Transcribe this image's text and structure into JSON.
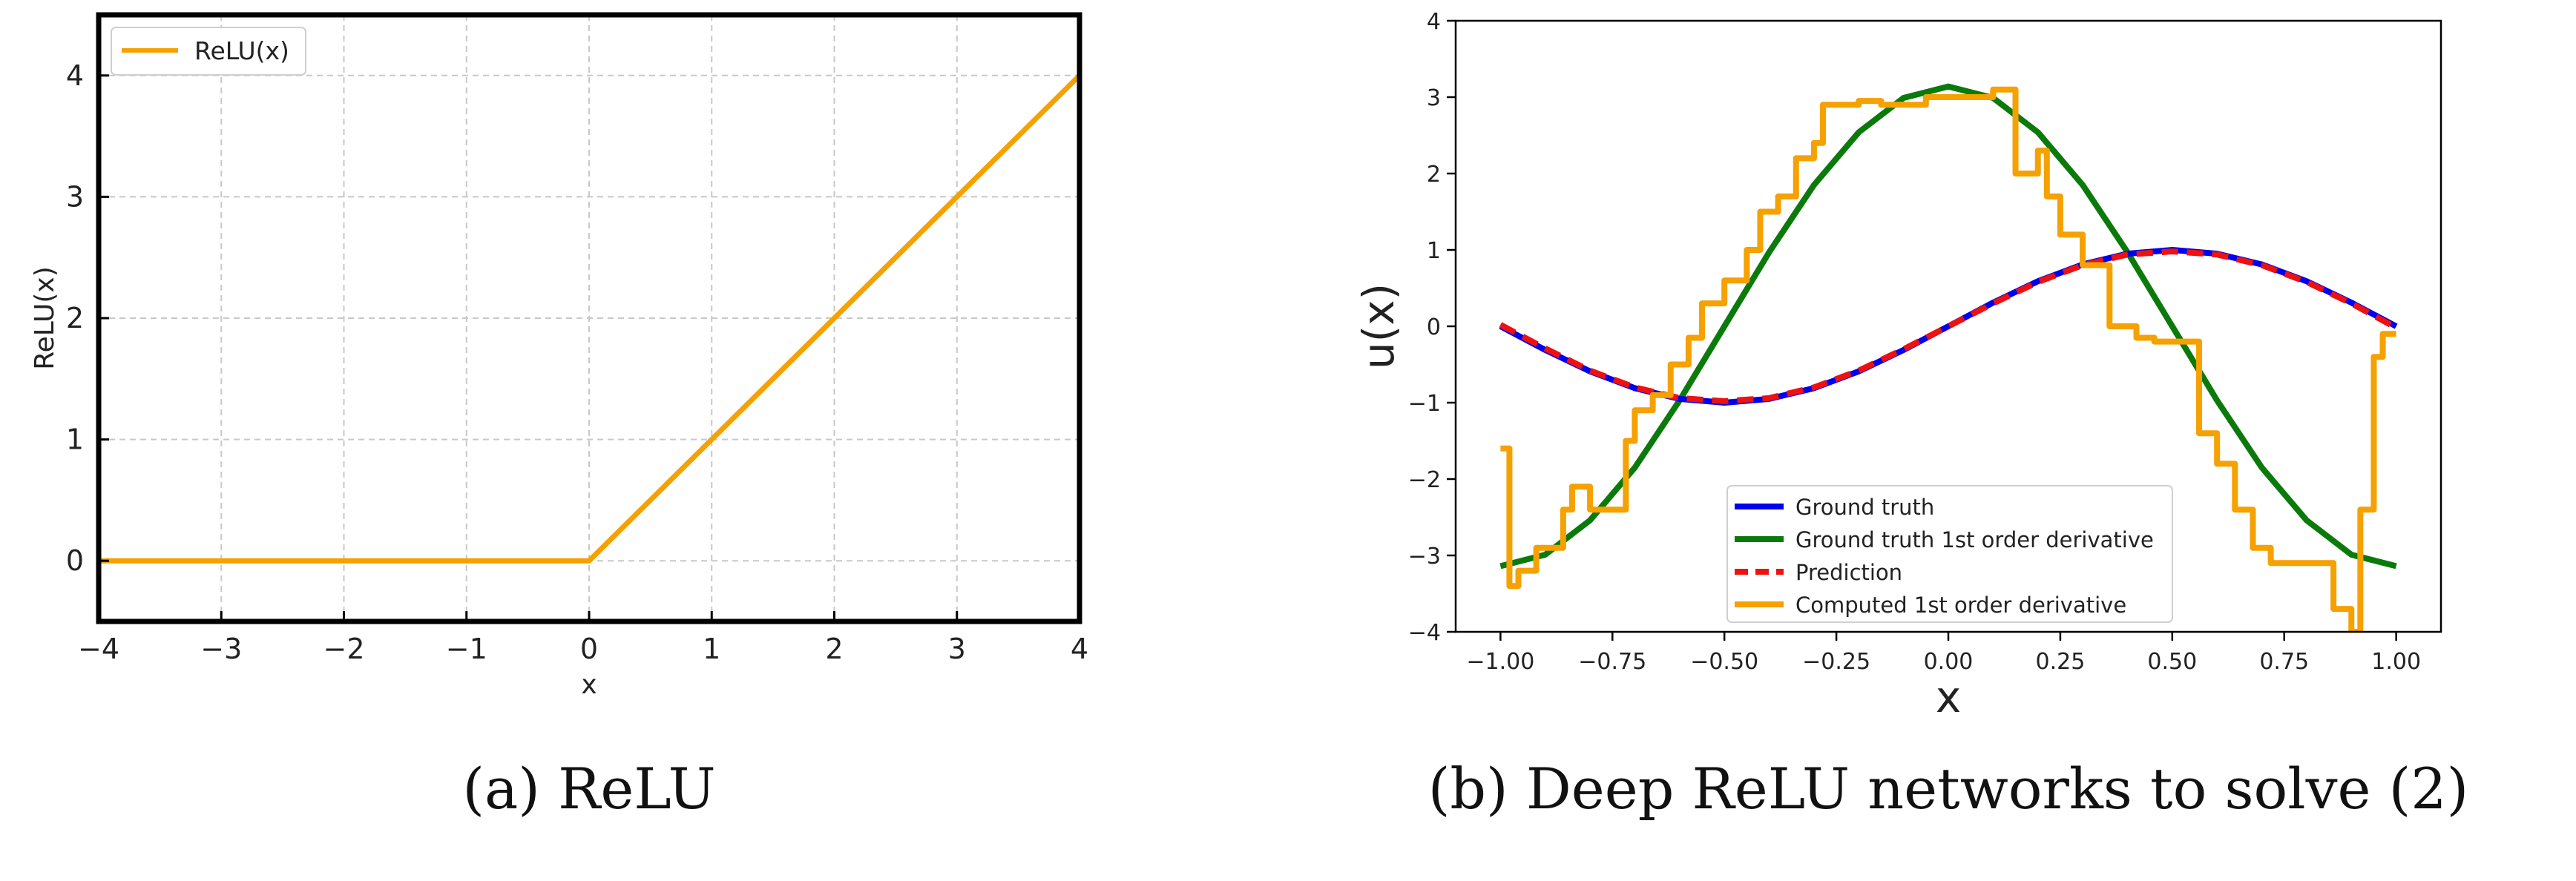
{
  "chart_data": [
    {
      "type": "line",
      "caption": "(a) ReLU",
      "xlabel": "x",
      "ylabel": "ReLU(x)",
      "xlim": [
        -4,
        4
      ],
      "ylim": [
        -0.5,
        4.5
      ],
      "xticks": [
        -4,
        -3,
        -2,
        -1,
        0,
        1,
        2,
        3,
        4
      ],
      "xtick_labels": [
        "−4",
        "−3",
        "−2",
        "−1",
        "0",
        "1",
        "2",
        "3",
        "4"
      ],
      "yticks": [
        0,
        1,
        2,
        3,
        4
      ],
      "ytick_labels": [
        "0",
        "1",
        "2",
        "3",
        "4"
      ],
      "grid": true,
      "legend": "top-left",
      "series": [
        {
          "name": "ReLU(x)",
          "color": "#f5a100",
          "x": [
            -4,
            0,
            4
          ],
          "y": [
            0,
            0,
            4
          ]
        }
      ]
    },
    {
      "type": "line",
      "caption": "(b) Deep ReLU networks to solve (2)",
      "xlabel": "x",
      "ylabel": "u(x)",
      "xlim": [
        -1.1,
        1.1
      ],
      "ylim": [
        -4,
        4
      ],
      "xticks": [
        -1.0,
        -0.75,
        -0.5,
        -0.25,
        0.0,
        0.25,
        0.5,
        0.75,
        1.0
      ],
      "xtick_labels": [
        "−1.00",
        "−0.75",
        "−0.50",
        "−0.25",
        "0.00",
        "0.25",
        "0.50",
        "0.75",
        "1.00"
      ],
      "yticks": [
        4,
        3,
        2,
        1,
        0,
        -1,
        -2,
        -3,
        -4
      ],
      "ytick_labels": [
        "4",
        "3",
        "2",
        "1",
        "0",
        "−1",
        "−2",
        "−3",
        "−4"
      ],
      "grid": false,
      "legend": "lower-center",
      "series": [
        {
          "name": "Ground truth",
          "color": "#0000ee",
          "style": "solid",
          "x": [
            -1.0,
            -0.9,
            -0.8,
            -0.7,
            -0.6,
            -0.5,
            -0.4,
            -0.3,
            -0.2,
            -0.1,
            0.0,
            0.1,
            0.2,
            0.3,
            0.4,
            0.5,
            0.6,
            0.7,
            0.8,
            0.9,
            1.0
          ],
          "y": [
            0.0,
            -0.31,
            -0.59,
            -0.81,
            -0.95,
            -1.0,
            -0.95,
            -0.81,
            -0.59,
            -0.31,
            0.0,
            0.31,
            0.59,
            0.81,
            0.95,
            1.0,
            0.95,
            0.81,
            0.59,
            0.31,
            0.0
          ]
        },
        {
          "name": "Ground truth 1st order derivative",
          "color": "#0a7a0a",
          "style": "solid",
          "x": [
            -1.0,
            -0.9,
            -0.8,
            -0.7,
            -0.6,
            -0.5,
            -0.4,
            -0.3,
            -0.2,
            -0.1,
            0.0,
            0.1,
            0.2,
            0.3,
            0.4,
            0.5,
            0.6,
            0.7,
            0.8,
            0.9,
            1.0
          ],
          "y": [
            -3.14,
            -2.99,
            -2.54,
            -1.85,
            -0.97,
            0.0,
            0.97,
            1.85,
            2.54,
            2.99,
            3.14,
            2.99,
            2.54,
            1.85,
            0.97,
            0.0,
            -0.97,
            -1.85,
            -2.54,
            -2.99,
            -3.14
          ]
        },
        {
          "name": "Prediction",
          "color": "#ee1111",
          "style": "dashed",
          "x": [
            -1.0,
            -0.9,
            -0.8,
            -0.7,
            -0.6,
            -0.5,
            -0.4,
            -0.3,
            -0.2,
            -0.1,
            0.0,
            0.1,
            0.2,
            0.3,
            0.4,
            0.5,
            0.6,
            0.7,
            0.8,
            0.9,
            1.0
          ],
          "y": [
            0.02,
            -0.29,
            -0.58,
            -0.8,
            -0.94,
            -0.98,
            -0.94,
            -0.8,
            -0.58,
            -0.3,
            0.0,
            0.3,
            0.58,
            0.8,
            0.94,
            0.98,
            0.94,
            0.8,
            0.58,
            0.3,
            -0.02
          ]
        },
        {
          "name": "Computed 1st order derivative",
          "color": "#f5a100",
          "style": "step",
          "x": [
            -1.0,
            -0.98,
            -0.98,
            -0.96,
            -0.96,
            -0.92,
            -0.92,
            -0.86,
            -0.86,
            -0.84,
            -0.84,
            -0.8,
            -0.8,
            -0.72,
            -0.72,
            -0.7,
            -0.7,
            -0.66,
            -0.66,
            -0.62,
            -0.62,
            -0.58,
            -0.58,
            -0.55,
            -0.55,
            -0.5,
            -0.5,
            -0.45,
            -0.45,
            -0.42,
            -0.42,
            -0.38,
            -0.38,
            -0.34,
            -0.34,
            -0.3,
            -0.3,
            -0.28,
            -0.28,
            -0.2,
            -0.2,
            -0.15,
            -0.15,
            -0.05,
            -0.05,
            0.1,
            0.1,
            0.15,
            0.15,
            0.2,
            0.2,
            0.22,
            0.22,
            0.25,
            0.25,
            0.3,
            0.3,
            0.36,
            0.36,
            0.42,
            0.42,
            0.46,
            0.46,
            0.56,
            0.56,
            0.6,
            0.6,
            0.64,
            0.64,
            0.68,
            0.68,
            0.72,
            0.72,
            0.78,
            0.78,
            0.86,
            0.86,
            0.9,
            0.9,
            0.92,
            0.92,
            0.95,
            0.95,
            0.97,
            0.97,
            1.0
          ],
          "y": [
            -1.6,
            -1.6,
            -3.4,
            -3.4,
            -3.2,
            -3.2,
            -2.9,
            -2.9,
            -2.4,
            -2.4,
            -2.1,
            -2.1,
            -2.4,
            -2.4,
            -1.5,
            -1.5,
            -1.1,
            -1.1,
            -0.9,
            -0.9,
            -0.5,
            -0.5,
            -0.15,
            -0.15,
            0.3,
            0.3,
            0.6,
            0.6,
            1.0,
            1.0,
            1.5,
            1.5,
            1.7,
            1.7,
            2.2,
            2.2,
            2.4,
            2.4,
            2.9,
            2.9,
            2.95,
            2.95,
            2.9,
            2.9,
            3.0,
            3.0,
            3.1,
            3.1,
            2.0,
            2.0,
            2.3,
            2.3,
            1.7,
            1.7,
            1.2,
            1.2,
            0.8,
            0.8,
            0.0,
            0.0,
            -0.15,
            -0.15,
            -0.2,
            -0.2,
            -1.4,
            -1.4,
            -1.8,
            -1.8,
            -2.4,
            -2.4,
            -2.9,
            -2.9,
            -3.1,
            -3.1,
            -3.1,
            -3.1,
            -3.7,
            -3.7,
            -4.0,
            -4.0,
            -2.4,
            -2.4,
            -0.4,
            -0.4,
            -0.1,
            -0.1
          ]
        }
      ]
    }
  ]
}
